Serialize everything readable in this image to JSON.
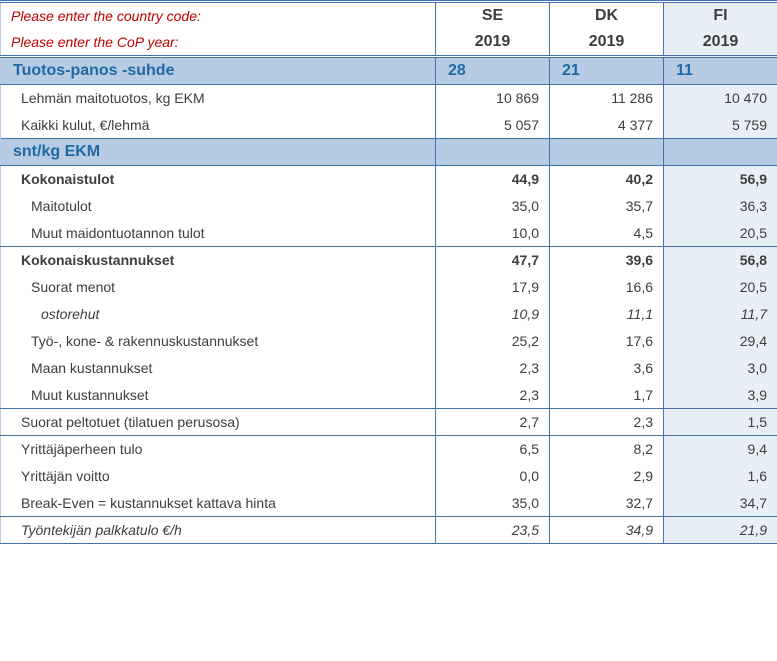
{
  "header": {
    "prompt_country": "Please enter the country code:",
    "prompt_year": "Please enter the CoP year:",
    "countries": [
      "SE",
      "DK",
      "FI"
    ],
    "years": [
      "2019",
      "2019",
      "2019"
    ]
  },
  "section1": {
    "title": "Tuotos-panos -suhde",
    "vals": [
      "28",
      "21",
      "11"
    ],
    "rows": [
      {
        "label": "Lehmän maitotuotos, kg EKM",
        "v": [
          "10 869",
          "11 286",
          "10 470"
        ]
      },
      {
        "label": "Kaikki kulut, €/lehmä",
        "v": [
          "5 057",
          "4 377",
          "5 759"
        ]
      }
    ]
  },
  "section2": {
    "title": "snt/kg EKM"
  },
  "income": {
    "title": "Kokonaistulot",
    "v": [
      "44,9",
      "40,2",
      "56,9"
    ],
    "rows": [
      {
        "label": "Maitotulot",
        "v": [
          "35,0",
          "35,7",
          "36,3"
        ]
      },
      {
        "label": "Muut maidontuotannon tulot",
        "v": [
          "10,0",
          "4,5",
          "20,5"
        ]
      }
    ]
  },
  "costs": {
    "title": "Kokonaiskustannukset",
    "v": [
      "47,7",
      "39,6",
      "56,8"
    ],
    "rows": [
      {
        "label": "Suorat menot",
        "v": [
          "17,9",
          "16,6",
          "20,5"
        ]
      },
      {
        "label": "ostorehut",
        "v": [
          "10,9",
          "11,1",
          "11,7"
        ]
      },
      {
        "label": "Työ-, kone- & rakennuskustannukset",
        "v": [
          "25,2",
          "17,6",
          "29,4"
        ]
      },
      {
        "label": "Maan kustannukset",
        "v": [
          "2,3",
          "3,6",
          "3,0"
        ]
      },
      {
        "label": "Muut kustannukset",
        "v": [
          "2,3",
          "1,7",
          "3,9"
        ]
      }
    ]
  },
  "support": {
    "label": "Suorat peltotuet (tilatuen perusosa)",
    "v": [
      "2,7",
      "2,3",
      "1,5"
    ]
  },
  "results": {
    "rows": [
      {
        "label": "Yrittäjäperheen tulo",
        "v": [
          "6,5",
          "8,2",
          "9,4"
        ]
      },
      {
        "label": "Yrittäjän voitto",
        "v": [
          "0,0",
          "2,9",
          "1,6"
        ]
      },
      {
        "label": "Break-Even = kustannukset kattava hinta",
        "v": [
          "35,0",
          "32,7",
          "34,7"
        ]
      }
    ]
  },
  "wage": {
    "label": "Työntekijän palkkatulo €/h",
    "v": [
      "23,5",
      "34,9",
      "21,9"
    ]
  }
}
